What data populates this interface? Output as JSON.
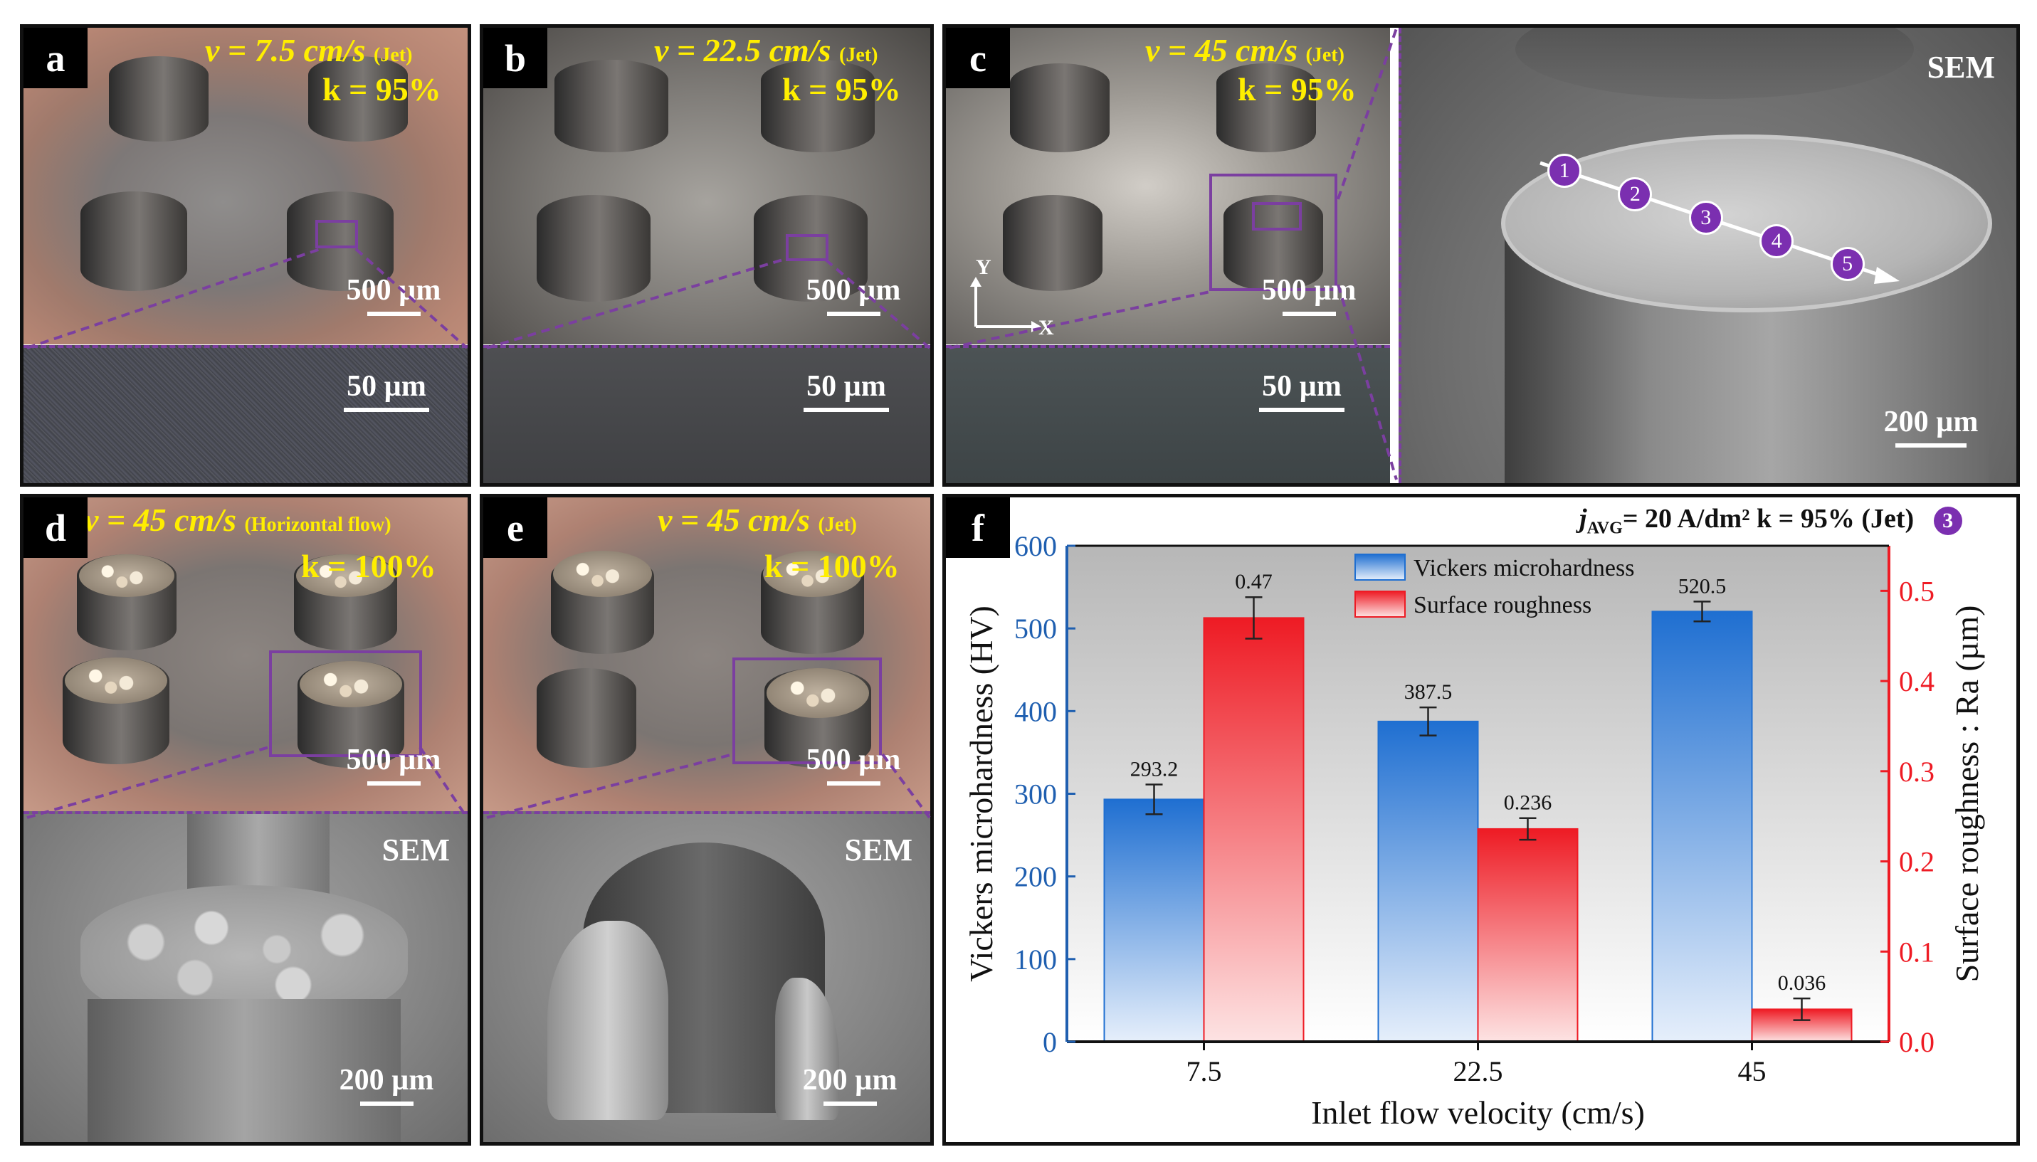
{
  "panels": {
    "a": {
      "letter": "a",
      "v": "v = 7.5 cm/s",
      "flow": "(Jet)",
      "k": "k = 95%",
      "scale_top": "500 µm",
      "scale_bottom": "50 µm"
    },
    "b": {
      "letter": "b",
      "v": "v = 22.5 cm/s",
      "flow": "(Jet)",
      "k": "k = 95%",
      "scale_top": "500 µm",
      "scale_bottom": "50 µm"
    },
    "c": {
      "letter": "c",
      "v": "v = 45 cm/s",
      "flow": "(Jet)",
      "k": "k = 95%",
      "scale_top": "500 µm",
      "scale_bottom": "50 µm",
      "axis_y": "Y",
      "axis_x": "X"
    },
    "c_sem": {
      "tag": "SEM",
      "scale": "200 µm",
      "points": [
        "1",
        "2",
        "3",
        "4",
        "5"
      ]
    },
    "d": {
      "letter": "d",
      "v": "v = 45 cm/s",
      "flow": "(Horizontal flow)",
      "k": "k = 100%",
      "scale_top": "500 µm",
      "sem_tag": "SEM",
      "scale_bottom": "200 µm"
    },
    "e": {
      "letter": "e",
      "v": "v = 45 cm/s",
      "flow": "(Jet)",
      "k": "k = 100%",
      "scale_top": "500 µm",
      "sem_tag": "SEM",
      "scale_bottom": "200 µm"
    },
    "f": {
      "letter": "f",
      "note_j": "j",
      "note_sub": "AVG",
      "note_rest": "= 20 A/dm² k = 95% (Jet)",
      "note_circle": "3"
    }
  },
  "chart_data": {
    "type": "bar",
    "categories": [
      "7.5",
      "22.5",
      "45"
    ],
    "xlabel": "Inlet flow velocity (cm/s)",
    "ylabel": "Vickers microhardness (HV)",
    "y2label": "Surface roughness : Ra (µm)",
    "ylim": [
      0,
      600
    ],
    "y2lim": [
      0,
      0.55
    ],
    "yticks": [
      "0",
      "100",
      "200",
      "300",
      "400",
      "500",
      "600"
    ],
    "y2ticks": [
      "0.0",
      "0.1",
      "0.2",
      "0.3",
      "0.4",
      "0.5"
    ],
    "legend_placement": "top-center",
    "series": [
      {
        "name": "Vickers microhardness",
        "axis": "left",
        "color": "#1f6fd1",
        "values": [
          293.2,
          387.5,
          520.5
        ],
        "errors": [
          18,
          17,
          12
        ],
        "labels": [
          "293.2",
          "387.5",
          "520.5"
        ]
      },
      {
        "name": "Surface roughness",
        "axis": "right",
        "color": "#ee1b24",
        "values": [
          0.47,
          0.236,
          0.036
        ],
        "errors": [
          0.023,
          0.012,
          0.012
        ],
        "labels": [
          "0.47",
          "0.236",
          "0.036"
        ]
      }
    ]
  }
}
